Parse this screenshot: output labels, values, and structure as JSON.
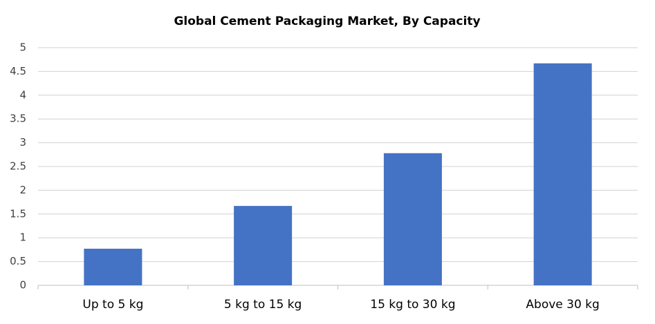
{
  "chart_data": {
    "type": "bar",
    "title": "Global Cement Packaging Market, By Capacity",
    "categories": [
      "Up to 5 kg",
      "5 kg to 15 kg",
      "15 kg to 30 kg",
      "Above 30 kg"
    ],
    "values": [
      0.77,
      1.67,
      2.78,
      4.67
    ],
    "color": "#4472c4",
    "ylim": [
      0,
      5
    ],
    "yticks": [
      0,
      0.5,
      1,
      1.5,
      2,
      2.5,
      3,
      3.5,
      4,
      4.5,
      5
    ],
    "grid": true
  }
}
